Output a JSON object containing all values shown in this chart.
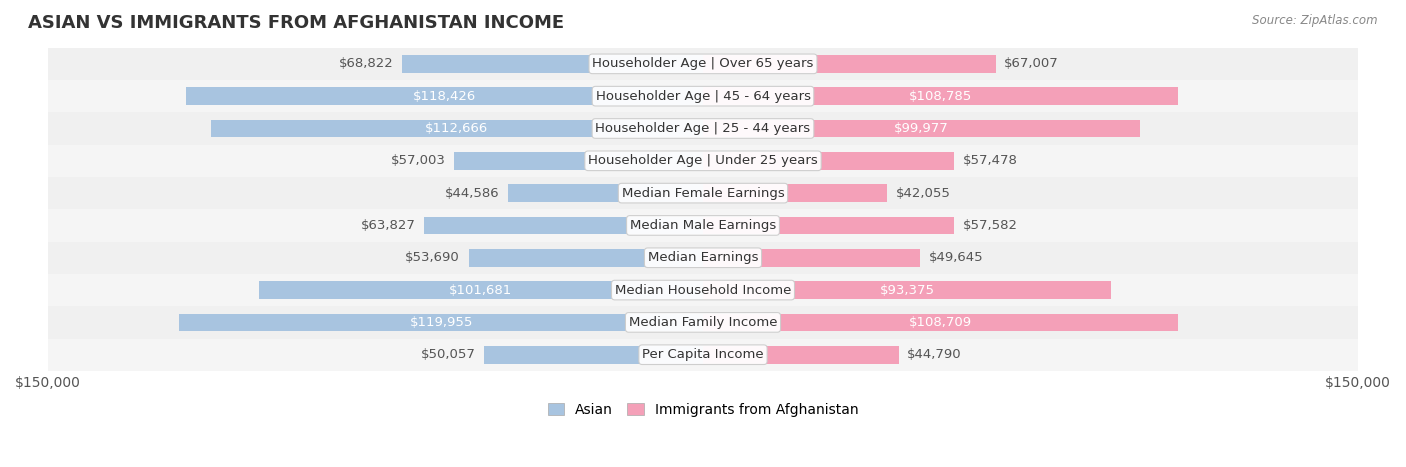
{
  "title": "ASIAN VS IMMIGRANTS FROM AFGHANISTAN INCOME",
  "source": "Source: ZipAtlas.com",
  "categories": [
    "Per Capita Income",
    "Median Family Income",
    "Median Household Income",
    "Median Earnings",
    "Median Male Earnings",
    "Median Female Earnings",
    "Householder Age | Under 25 years",
    "Householder Age | 25 - 44 years",
    "Householder Age | 45 - 64 years",
    "Householder Age | Over 65 years"
  ],
  "asian_values": [
    50057,
    119955,
    101681,
    53690,
    63827,
    44586,
    57003,
    112666,
    118426,
    68822
  ],
  "afghan_values": [
    44790,
    108709,
    93375,
    49645,
    57582,
    42055,
    57478,
    99977,
    108785,
    67007
  ],
  "asian_color": "#a8c4e0",
  "afghan_color": "#f4a0b8",
  "asian_label_color_threshold": 70000,
  "afghan_label_color_threshold": 70000,
  "max_value": 150000,
  "bar_height": 0.55,
  "row_bg_colors": [
    "#f5f5f5",
    "#f0f0f0"
  ],
  "label_fontsize": 9.5,
  "title_fontsize": 13,
  "legend_asian_color": "#a8c4e0",
  "legend_afghan_color": "#f4a0b8",
  "x_tick_labels": [
    "$150,000",
    "$150,000"
  ],
  "asian_text_color_inside": "#ffffff",
  "asian_text_color_outside": "#555555",
  "afghan_text_color_inside": "#ffffff",
  "afghan_text_color_outside": "#555555"
}
